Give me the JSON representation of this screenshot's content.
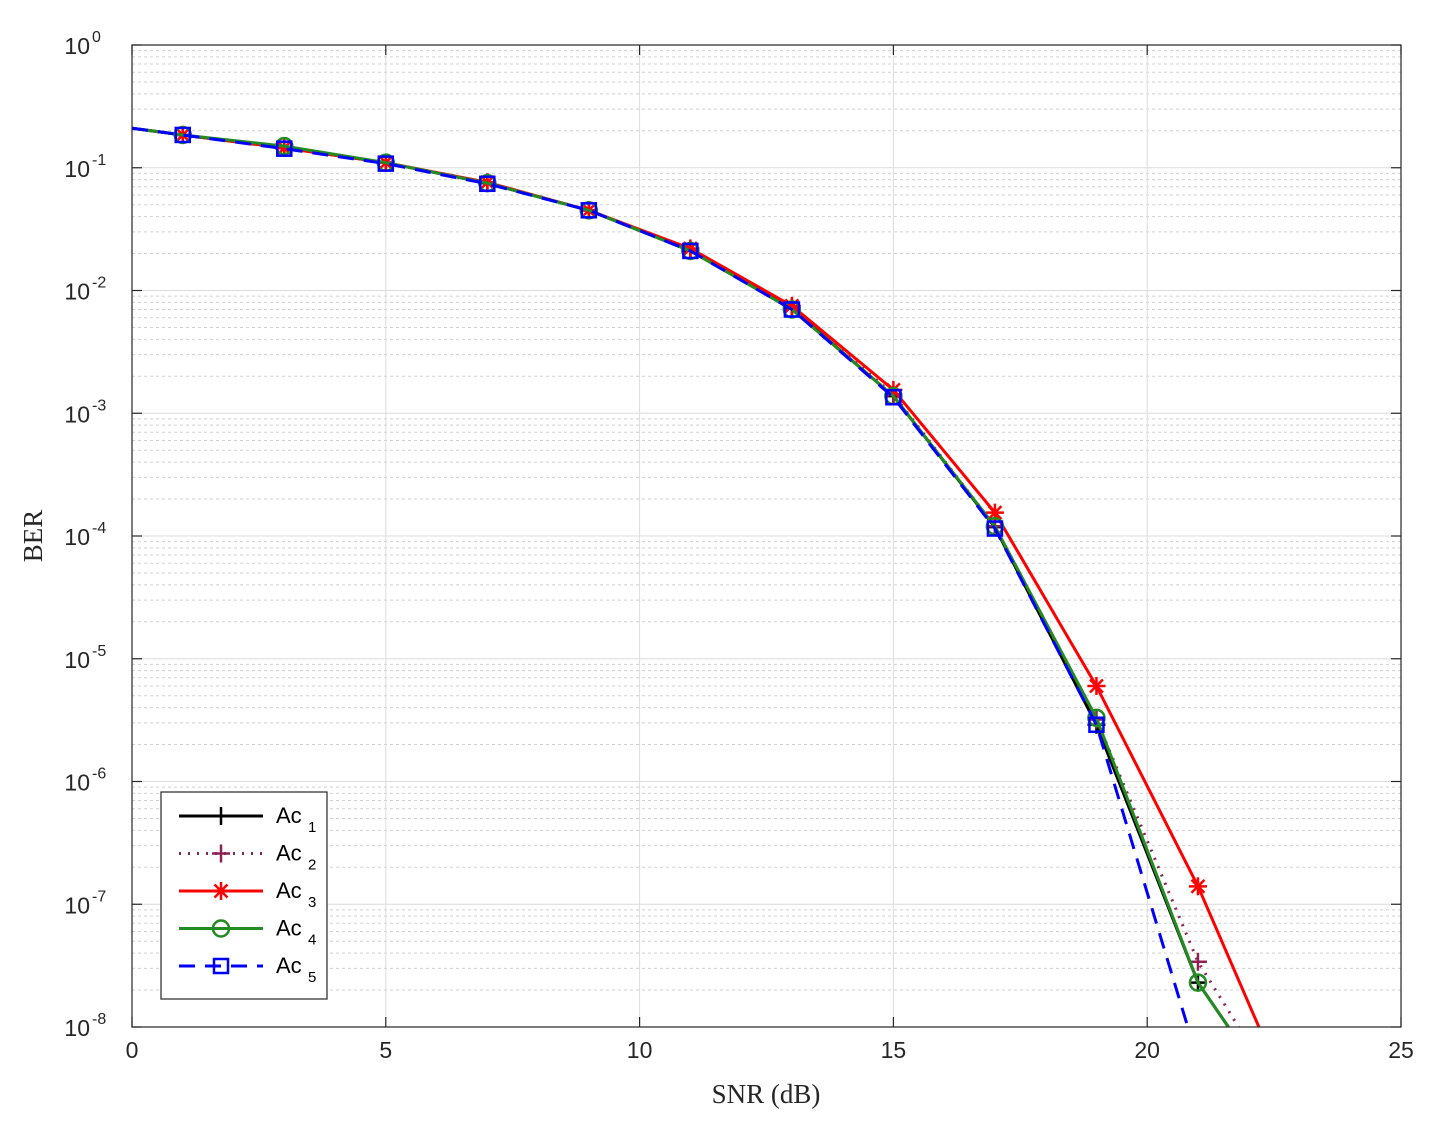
{
  "chart_data": {
    "type": "line",
    "title": "",
    "xlabel": "SNR (dB)",
    "ylabel": "BER",
    "xlim": [
      0,
      25
    ],
    "ylim": [
      1e-08,
      1
    ],
    "yscale": "log",
    "grid": true,
    "minor_grid": true,
    "legend_position": "bottom-left",
    "x_ticks": [
      0,
      5,
      10,
      15,
      20,
      25
    ],
    "y_ticks": [
      {
        "base": "10",
        "exp": "-8",
        "value": 1e-08
      },
      {
        "base": "10",
        "exp": "-7",
        "value": 1e-07
      },
      {
        "base": "10",
        "exp": "-6",
        "value": 1e-06
      },
      {
        "base": "10",
        "exp": "-5",
        "value": 1e-05
      },
      {
        "base": "10",
        "exp": "-4",
        "value": 0.0001
      },
      {
        "base": "10",
        "exp": "-3",
        "value": 0.001
      },
      {
        "base": "10",
        "exp": "-2",
        "value": 0.01
      },
      {
        "base": "10",
        "exp": "-1",
        "value": 0.1
      },
      {
        "base": "10",
        "exp": "0",
        "value": 1
      }
    ],
    "series": [
      {
        "name": "Ac",
        "sub": "1",
        "color": "#000000",
        "dash": "solid",
        "marker": "plus",
        "line_x": [
          0,
          1,
          3,
          5,
          7,
          9,
          11,
          13,
          15,
          17,
          19,
          21,
          21.6
        ],
        "line_y": [
          0.21,
          0.185,
          0.145,
          0.11,
          0.075,
          0.045,
          0.021,
          0.0071,
          0.00138,
          0.000118,
          2.9e-06,
          2.3e-08,
          1e-08
        ],
        "marker_x": [
          1,
          3,
          5,
          7,
          9,
          11,
          13,
          15,
          17,
          19,
          21
        ],
        "marker_y": [
          0.185,
          0.145,
          0.11,
          0.075,
          0.045,
          0.021,
          0.0071,
          0.00138,
          0.000118,
          2.9e-06,
          2.3e-08
        ]
      },
      {
        "name": "Ac",
        "sub": "2",
        "color": "#8b2252",
        "dash": "dotted",
        "marker": "plus",
        "line_x": [
          0,
          1,
          3,
          5,
          7,
          9,
          11,
          13,
          15,
          17,
          19,
          21,
          21.8
        ],
        "line_y": [
          0.21,
          0.185,
          0.145,
          0.11,
          0.076,
          0.045,
          0.0215,
          0.0073,
          0.00142,
          0.00012,
          3.2e-06,
          3.4e-08,
          1e-08
        ],
        "marker_x": [
          1,
          3,
          5,
          7,
          9,
          11,
          13,
          15,
          17,
          19,
          21
        ],
        "marker_y": [
          0.185,
          0.145,
          0.11,
          0.076,
          0.045,
          0.0215,
          0.0073,
          0.00142,
          0.00012,
          3.2e-06,
          3.4e-08
        ]
      },
      {
        "name": "Ac",
        "sub": "3",
        "color": "#ff0000",
        "dash": "solid",
        "marker": "asterisk",
        "line_x": [
          0,
          1,
          3,
          5,
          7,
          9,
          11,
          13,
          15,
          17,
          19,
          21,
          22.2
        ],
        "line_y": [
          0.21,
          0.185,
          0.145,
          0.11,
          0.076,
          0.045,
          0.022,
          0.0075,
          0.00155,
          0.000155,
          6e-06,
          1.4e-07,
          1e-08
        ],
        "marker_x": [
          1,
          3,
          5,
          7,
          9,
          11,
          13,
          15,
          17,
          19,
          21
        ],
        "marker_y": [
          0.185,
          0.145,
          0.11,
          0.076,
          0.045,
          0.022,
          0.0075,
          0.00155,
          0.000155,
          6e-06,
          1.4e-07
        ]
      },
      {
        "name": "Ac",
        "sub": "4",
        "color": "#228b22",
        "dash": "solid",
        "marker": "circle",
        "line_x": [
          0,
          1,
          3,
          5,
          7,
          9,
          11,
          13,
          15,
          17,
          19,
          21,
          21.6
        ],
        "line_y": [
          0.21,
          0.185,
          0.15,
          0.11,
          0.075,
          0.045,
          0.021,
          0.007,
          0.00138,
          0.00012,
          3.3e-06,
          2.3e-08,
          1e-08
        ],
        "marker_x": [
          1,
          3,
          5,
          7,
          9,
          11,
          13,
          15,
          17,
          19,
          21
        ],
        "marker_y": [
          0.185,
          0.15,
          0.11,
          0.075,
          0.045,
          0.021,
          0.007,
          0.00138,
          0.00012,
          3.3e-06,
          2.3e-08
        ]
      },
      {
        "name": "Ac",
        "sub": "5",
        "color": "#0000ff",
        "dash": "dashed",
        "marker": "square",
        "line_x": [
          0,
          1,
          3,
          5,
          7,
          9,
          11,
          13,
          15,
          17,
          19,
          20.8
        ],
        "line_y": [
          0.21,
          0.185,
          0.143,
          0.108,
          0.074,
          0.045,
          0.021,
          0.007,
          0.00135,
          0.000115,
          2.9e-06,
          1e-08
        ],
        "marker_x": [
          1,
          3,
          5,
          7,
          9,
          11,
          13,
          15,
          17,
          19
        ],
        "marker_y": [
          0.185,
          0.143,
          0.108,
          0.074,
          0.045,
          0.021,
          0.007,
          0.00135,
          0.000115,
          2.9e-06
        ]
      }
    ]
  }
}
